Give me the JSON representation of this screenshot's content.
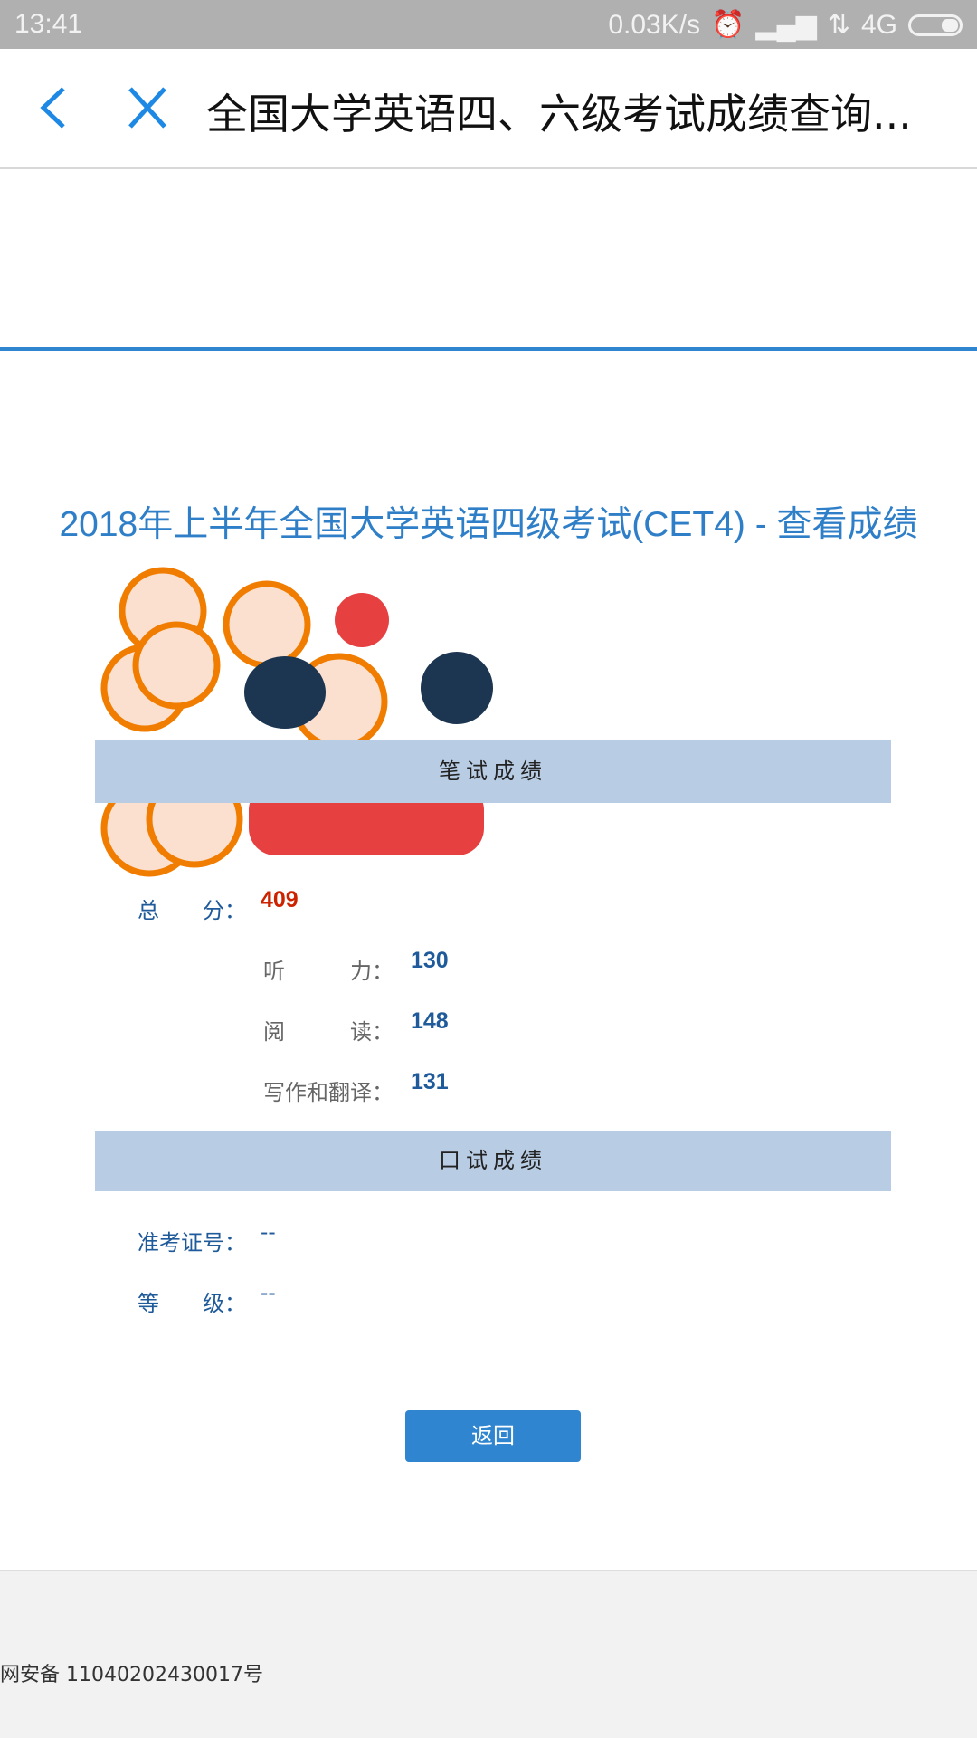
{
  "status_bar": {
    "time": "13:41",
    "net_speed": "0.03K/s",
    "network": "4G",
    "icons": [
      "alarm-icon",
      "signal-icon",
      "data-arrows-icon",
      "battery-icon"
    ]
  },
  "header": {
    "title": "全国大学英语四、六级考试成绩查询...",
    "back_icon": "chevron-left-icon",
    "close_icon": "close-icon",
    "accent": "#1e88e5"
  },
  "page_title": "2018年上半年全国大学英语四级考试(CET4) - 查看成绩",
  "written": {
    "header": "笔试成绩",
    "total_label": "总　　分：",
    "total": "409",
    "items": [
      {
        "label": "听　　　力：",
        "value": "130"
      },
      {
        "label": "阅　　　读：",
        "value": "148"
      },
      {
        "label": "写作和翻译：",
        "value": "131"
      }
    ]
  },
  "oral": {
    "header": "口试成绩",
    "ticket_label": "准考证号：",
    "ticket": "--",
    "grade_label": "等　　级：",
    "grade": "--"
  },
  "return_button": "返回",
  "footer": {
    "text": "网安备 11040202430017号"
  },
  "colors": {
    "title": "#2f7fc8",
    "bar": "#b8cce4",
    "total": "#cc2200",
    "score": "#1f5a9a",
    "button": "#2f85cf"
  }
}
